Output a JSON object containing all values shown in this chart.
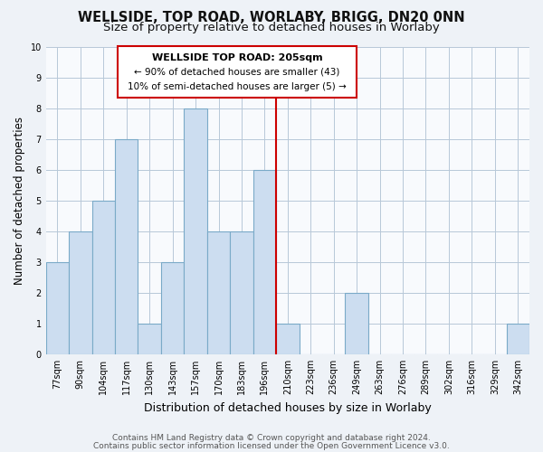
{
  "title": "WELLSIDE, TOP ROAD, WORLABY, BRIGG, DN20 0NN",
  "subtitle": "Size of property relative to detached houses in Worlaby",
  "xlabel": "Distribution of detached houses by size in Worlaby",
  "ylabel": "Number of detached properties",
  "bar_labels": [
    "77sqm",
    "90sqm",
    "104sqm",
    "117sqm",
    "130sqm",
    "143sqm",
    "157sqm",
    "170sqm",
    "183sqm",
    "196sqm",
    "210sqm",
    "223sqm",
    "236sqm",
    "249sqm",
    "263sqm",
    "276sqm",
    "289sqm",
    "302sqm",
    "316sqm",
    "329sqm",
    "342sqm"
  ],
  "bar_values": [
    3,
    4,
    5,
    7,
    1,
    3,
    8,
    4,
    4,
    6,
    1,
    0,
    0,
    2,
    0,
    0,
    0,
    0,
    0,
    0,
    1
  ],
  "bar_color": "#ccddf0",
  "bar_edgecolor": "#7aaac8",
  "vline_x_index": 9.5,
  "vline_color": "#cc0000",
  "annotation_title": "WELLSIDE TOP ROAD: 205sqm",
  "annotation_line1": "← 90% of detached houses are smaller (43)",
  "annotation_line2": "10% of semi-detached houses are larger (5) →",
  "annotation_box_edgecolor": "#cc0000",
  "ylim": [
    0,
    10
  ],
  "yticks": [
    0,
    1,
    2,
    3,
    4,
    5,
    6,
    7,
    8,
    9,
    10
  ],
  "footer_line1": "Contains HM Land Registry data © Crown copyright and database right 2024.",
  "footer_line2": "Contains public sector information licensed under the Open Government Licence v3.0.",
  "background_color": "#eef2f7",
  "plot_background_color": "#f8fafd",
  "grid_color": "#b8c8d8",
  "title_fontsize": 10.5,
  "subtitle_fontsize": 9.5,
  "xlabel_fontsize": 9,
  "ylabel_fontsize": 8.5,
  "tick_fontsize": 7,
  "footer_fontsize": 6.5,
  "ann_title_fontsize": 8,
  "ann_text_fontsize": 7.5
}
